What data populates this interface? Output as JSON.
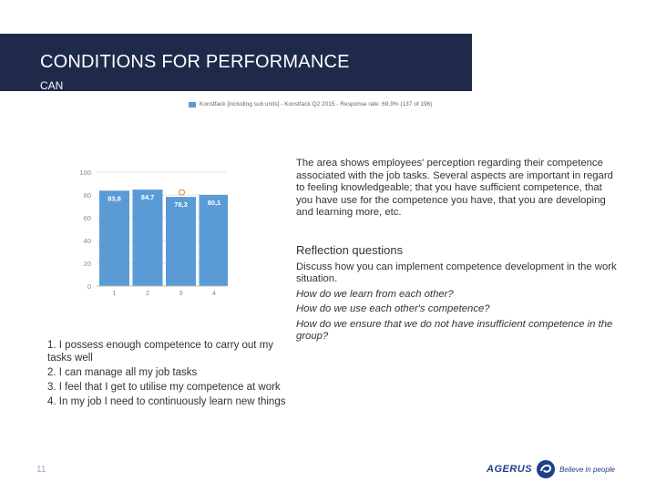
{
  "header": {
    "title": "CONDITIONS FOR PERFORMANCE",
    "subtitle": "CAN"
  },
  "legend": {
    "label": "Konstfack [including sub units] - Konstfack Q2 2015 - Response rate: 69,9% (137 of 196)",
    "color": "#5a9bd5"
  },
  "chart_data": {
    "type": "bar",
    "categories": [
      "1",
      "2",
      "3",
      "4"
    ],
    "values": [
      83.8,
      84.7,
      78.3,
      80.1
    ],
    "data_labels": [
      "83,8",
      "84,7",
      "78,3",
      "80,1"
    ],
    "marked_bar_index": 2,
    "y_ticks": [
      "0",
      "20",
      "40",
      "60",
      "80",
      "100"
    ],
    "ylim": [
      0,
      100
    ],
    "grid": true,
    "bar_color": "#5a9bd5",
    "marker_color": "#e8842b",
    "xlabel": "",
    "ylabel": ""
  },
  "questions": [
    "1. I possess enough competence to carry out my tasks well",
    "2. I can manage all my job tasks",
    "3. I feel that I get to utilise my competence at work",
    "4. In my job I need to continuously learn new things"
  ],
  "description": "The area shows employees' perception regarding their competence associated with the job tasks. Several aspects are important in regard to feeling knowledgeable; that you have sufficient competence, that you have use for the competence you have, that you are developing and learning more, etc.",
  "reflection": {
    "heading": "Reflection questions",
    "intro": "Discuss how you can implement competence development in the work situation.",
    "questions": [
      "How do we learn from each other?",
      "How do we use each other's competence?",
      "How do we ensure that we do not have insufficient competence in the group?"
    ]
  },
  "footer": {
    "page_number": "11",
    "logo_text": "AGERUS",
    "logo_tagline": "Believe in people"
  }
}
